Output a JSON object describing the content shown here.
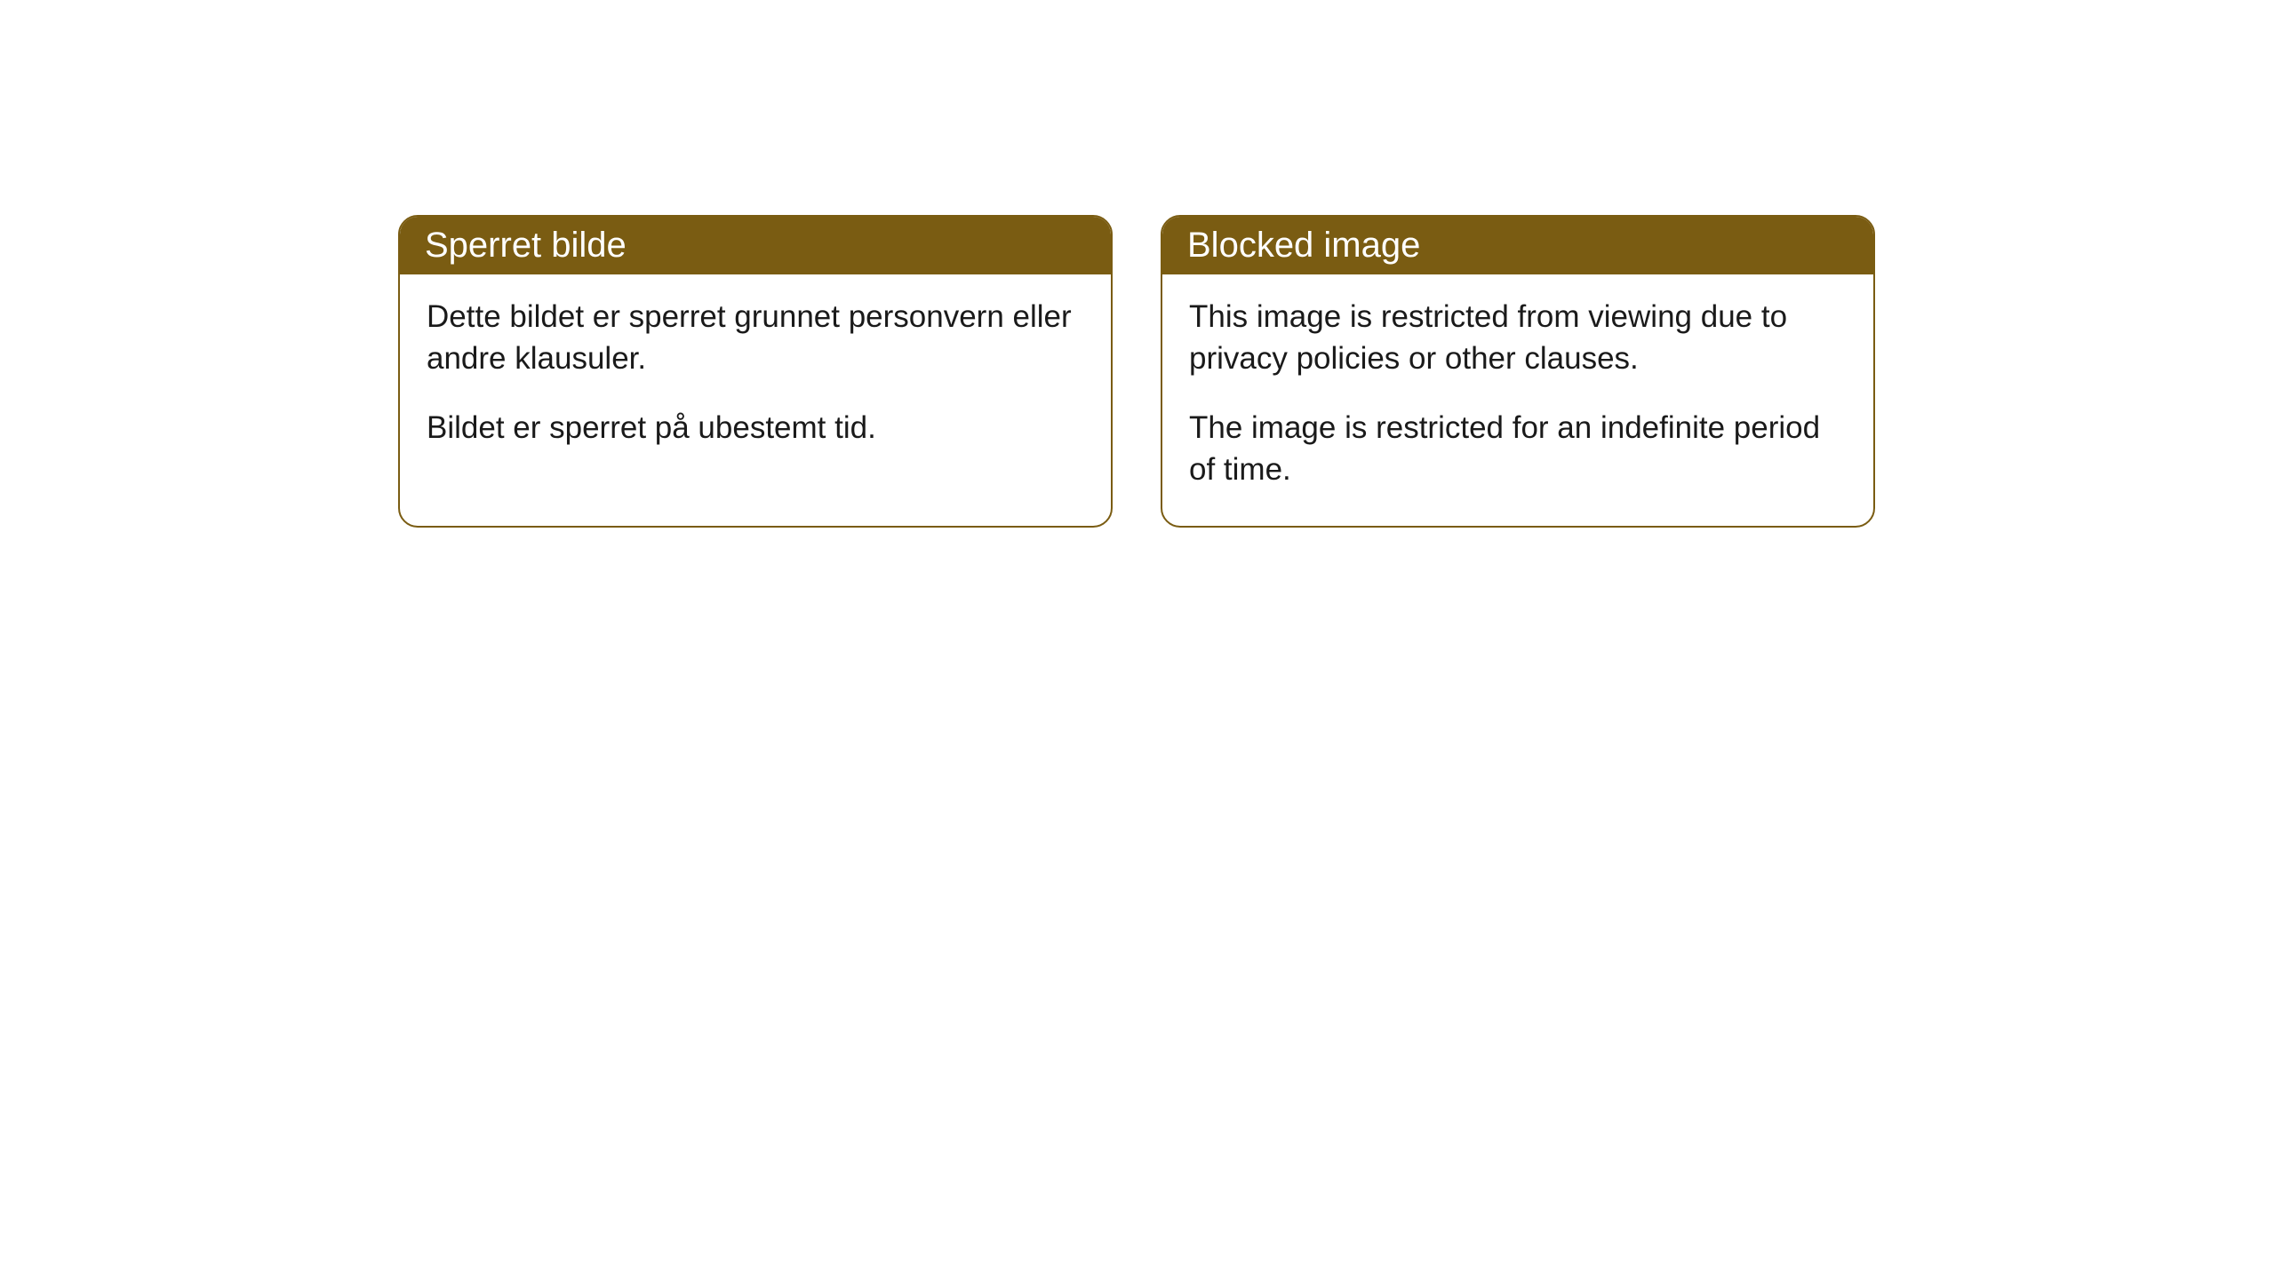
{
  "notices": {
    "left": {
      "title": "Sperret bilde",
      "para1": "Dette bildet er sperret grunnet personvern eller andre klausuler.",
      "para2": "Bildet er sperret på ubestemt tid."
    },
    "right": {
      "title": "Blocked image",
      "para1": "This image is restricted from viewing due to privacy policies or other clauses.",
      "para2": "The image is restricted for an indefinite period of time."
    }
  },
  "style": {
    "header_bg": "#7a5c12",
    "header_text": "#ffffff",
    "border_color": "#7a5c12",
    "body_bg": "#ffffff",
    "body_text": "#1a1a1a",
    "border_radius": 22,
    "title_fontsize": 40,
    "body_fontsize": 35
  }
}
